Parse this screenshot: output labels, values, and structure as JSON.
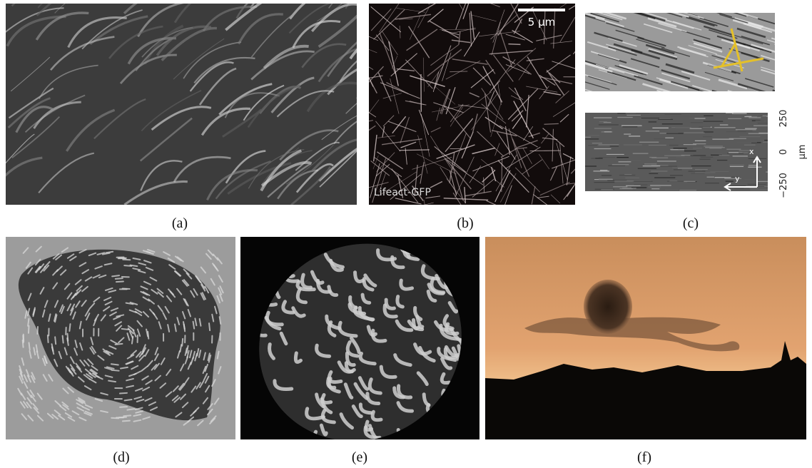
{
  "panels": [
    {
      "label": "(a)"
    },
    {
      "label": "(b)",
      "scale_bar": "5 μm",
      "caption": "Lifeact-GFP"
    },
    {
      "label": "(c)",
      "axis_ticks": [
        "250",
        "0",
        "−250"
      ],
      "axis_unit": "μm",
      "arrows": [
        "x",
        "y"
      ]
    },
    {
      "label": "(d)"
    },
    {
      "label": "(e)"
    },
    {
      "label": "(f)"
    }
  ]
}
